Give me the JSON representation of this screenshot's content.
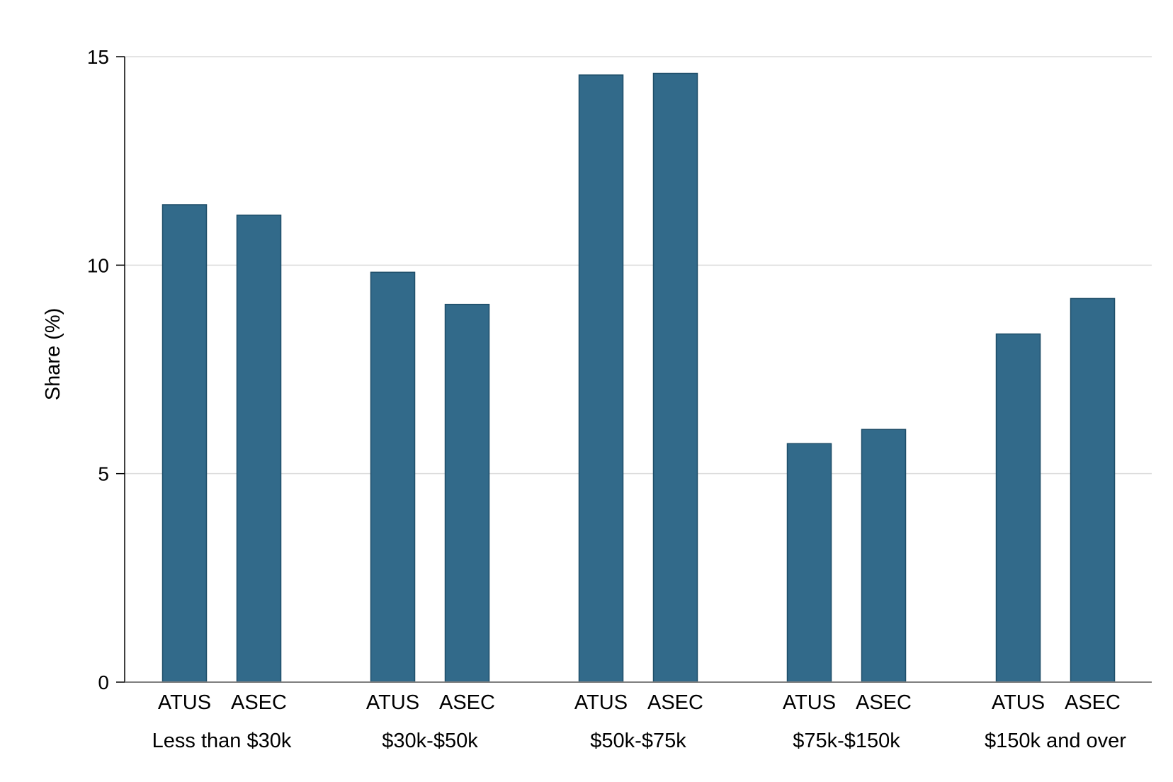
{
  "chart_data": {
    "type": "bar",
    "title": "",
    "xlabel": "",
    "ylabel": "Share (%)",
    "ylim": [
      0,
      15
    ],
    "yticks": [
      0,
      5,
      10,
      15
    ],
    "grid": true,
    "legend": "none",
    "bar_color": "#326a8a",
    "bar_edge_color": "#1d4d68",
    "grid_color": "#dcdcdc",
    "groups": [
      {
        "label": "Less than $30k",
        "bars": [
          {
            "label": "ATUS",
            "value": 11.45
          },
          {
            "label": "ASEC",
            "value": 11.2
          }
        ]
      },
      {
        "label": "$30k-$50k",
        "bars": [
          {
            "label": "ATUS",
            "value": 9.83
          },
          {
            "label": "ASEC",
            "value": 9.06
          }
        ]
      },
      {
        "label": "$50k-$75k",
        "bars": [
          {
            "label": "ATUS",
            "value": 14.56
          },
          {
            "label": "ASEC",
            "value": 14.6
          }
        ]
      },
      {
        "label": "$75k-$150k",
        "bars": [
          {
            "label": "ATUS",
            "value": 5.72
          },
          {
            "label": "ASEC",
            "value": 6.06
          }
        ]
      },
      {
        "label": "$150k and over",
        "bars": [
          {
            "label": "ATUS",
            "value": 8.35
          },
          {
            "label": "ASEC",
            "value": 9.2
          }
        ]
      }
    ]
  }
}
